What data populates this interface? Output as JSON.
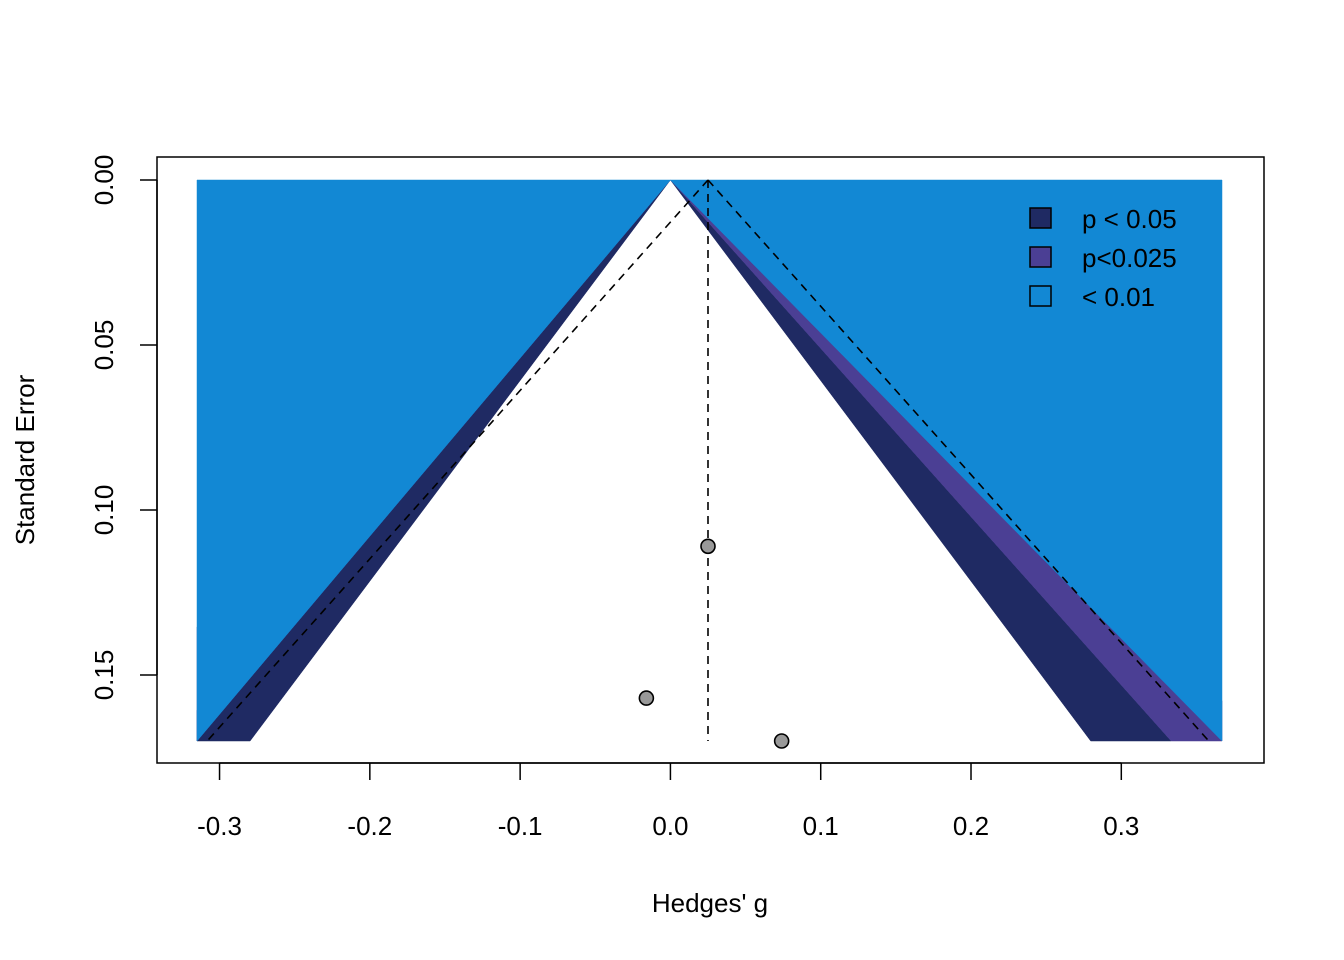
{
  "chart_data": {
    "type": "scatter",
    "subtype": "contour-enhanced funnel plot",
    "title": "",
    "xlabel": "Hedges' g",
    "ylabel": "Standard Error",
    "xlim": [
      -0.315,
      0.367
    ],
    "ylim": [
      0,
      0.17
    ],
    "y_reversed": true,
    "x_ticks": [
      "-0.3",
      "-0.2",
      "-0.1",
      "0.0",
      "0.1",
      "0.2",
      "0.3"
    ],
    "y_ticks": [
      "0.00",
      "0.05",
      "0.10",
      "0.15"
    ],
    "grid": false,
    "legend_position": "top-right",
    "contour_center": 0,
    "contours": [
      {
        "label": "p < 0.05",
        "z_inner": 1.645,
        "z_outer": 1.96,
        "color": "#1f2a63"
      },
      {
        "label": "p<0.025",
        "z_inner": 1.96,
        "z_outer": 2.326,
        "color": "#4b3f94"
      },
      {
        "label": "< 0.01",
        "z_inner": 2.326,
        "z_outer": null,
        "color": "#1288d4"
      }
    ],
    "summary_estimate": 0.025,
    "points": [
      {
        "x": 0.025,
        "y": 0.111
      },
      {
        "x": -0.016,
        "y": 0.157
      },
      {
        "x": 0.074,
        "y": 0.17
      }
    ],
    "point_color": "#999999"
  }
}
